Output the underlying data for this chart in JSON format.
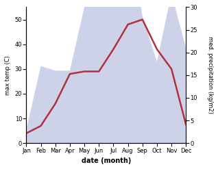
{
  "months": [
    "Jan",
    "Feb",
    "Mar",
    "Apr",
    "May",
    "Jun",
    "Jul",
    "Aug",
    "Sep",
    "Oct",
    "Nov",
    "Dec"
  ],
  "temp": [
    4,
    7,
    16,
    28,
    29,
    29,
    38,
    48,
    50,
    38,
    30,
    7.5
  ],
  "precip": [
    3,
    17,
    16,
    16,
    30,
    33,
    55,
    48,
    28,
    18,
    33,
    21
  ],
  "temp_color": "#b03040",
  "precip_fill_color": "#b8c0e0",
  "precip_fill_alpha": 0.7,
  "xlabel": "date (month)",
  "ylabel_left": "max temp (C)",
  "ylabel_right": "med. precipitation (kg/m2)",
  "ylim_left": [
    0,
    55
  ],
  "ylim_right": [
    0,
    30
  ],
  "yticks_left": [
    0,
    10,
    20,
    30,
    40,
    50
  ],
  "yticks_right": [
    0,
    5,
    10,
    15,
    20,
    25,
    30
  ],
  "precip_scale_factor": 1.8333,
  "bg_color": "#ffffff",
  "label_fontsize": 6,
  "tick_fontsize": 6,
  "xlabel_fontsize": 7,
  "line_width": 1.8
}
